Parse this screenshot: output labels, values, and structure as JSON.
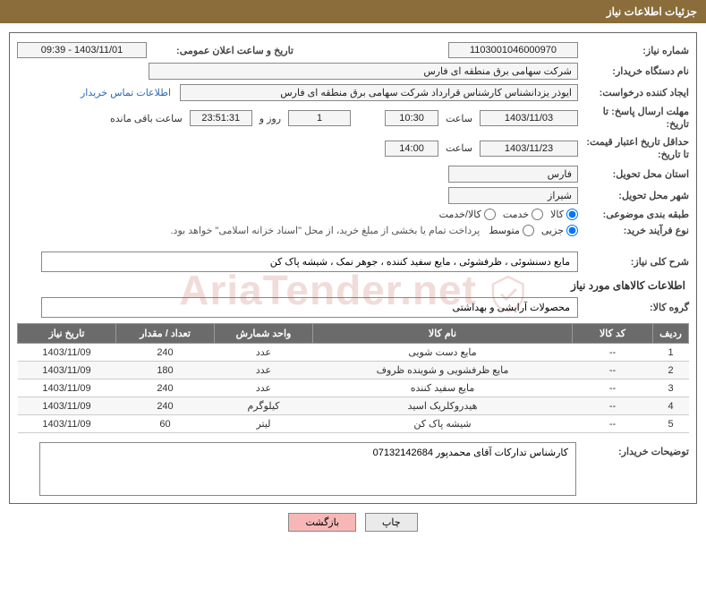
{
  "header": {
    "title": "جزئیات اطلاعات نیاز"
  },
  "fields": {
    "need_no_label": "شماره نیاز:",
    "need_no": "1103001046000970",
    "announce_label": "تاریخ و ساعت اعلان عمومی:",
    "announce_val": "1403/11/01 - 09:39",
    "buyer_org_label": "نام دستگاه خریدار:",
    "buyer_org": "شرکت سهامی برق منطقه ای فارس",
    "requester_label": "ایجاد کننده درخواست:",
    "requester": "ایوذر  یزدانشناس کارشناس قرارداد شرکت سهامی برق منطقه ای فارس",
    "contact_link": "اطلاعات تماس خریدار",
    "deadline_send_label": "مهلت ارسال پاسخ:  تا تاریخ:",
    "deadline_send_date": "1403/11/03",
    "time_label": "ساعت",
    "deadline_send_time": "10:30",
    "days_label_num": "1",
    "days_label": "روز و",
    "countdown": "23:51:31",
    "countdown_suffix": "ساعت باقی مانده",
    "validity_label": "حداقل تاریخ اعتبار قیمت: تا تاریخ:",
    "validity_date": "1403/11/23",
    "validity_time": "14:00",
    "province_label": "استان محل تحویل:",
    "province": "فارس",
    "city_label": "شهر محل تحویل:",
    "city": "شیراز",
    "category_label": "طبقه بندی موضوعی:",
    "cat_goods": "کالا",
    "cat_service": "خدمت",
    "cat_both": "کالا/خدمت",
    "purchase_type_label": "نوع فرآیند خرید:",
    "pt_partial": "جزیی",
    "pt_medium": "متوسط",
    "treasury_note": "پرداخت تمام یا بخشی از مبلغ خرید، از محل \"اسناد خزانه اسلامی\" خواهد بود.",
    "need_desc_label": "شرح کلی نیاز:",
    "need_desc": "مایع دسنشوئی ، ظرفشوئی ، مایع سفید کننده ، جوهر نمک ، شیشه پاک کن",
    "goods_info_header": "اطلاعات کالاهای مورد نیاز",
    "group_label": "گروه کالا:",
    "group_val": "محصولات آرایشی و بهداشتی",
    "buyer_note_label": "توضیحات خریدار:",
    "buyer_note": "کارشناس تدارکات آقای محمدپور 07132142684"
  },
  "table": {
    "headers": {
      "row": "ردیف",
      "code": "کد کالا",
      "name": "نام کالا",
      "unit": "واحد شمارش",
      "qty": "تعداد / مقدار",
      "date": "تاریخ نیاز"
    },
    "col_widths": {
      "row": "40px",
      "code": "90px",
      "name": "auto",
      "unit": "110px",
      "qty": "110px",
      "date": "110px"
    },
    "rows": [
      {
        "row": "1",
        "code": "--",
        "name": "مایع دست شویی",
        "unit": "عدد",
        "qty": "240",
        "date": "1403/11/09"
      },
      {
        "row": "2",
        "code": "--",
        "name": "مایع ظرفشویی و شوینده ظروف",
        "unit": "عدد",
        "qty": "180",
        "date": "1403/11/09"
      },
      {
        "row": "3",
        "code": "--",
        "name": "مایع سفید کننده",
        "unit": "عدد",
        "qty": "240",
        "date": "1403/11/09"
      },
      {
        "row": "4",
        "code": "--",
        "name": "هیدروکلریک اسید",
        "unit": "کیلوگرم",
        "qty": "240",
        "date": "1403/11/09"
      },
      {
        "row": "5",
        "code": "--",
        "name": "شیشه پاک کن",
        "unit": "لیتر",
        "qty": "60",
        "date": "1403/11/09"
      }
    ]
  },
  "buttons": {
    "print": "چاپ",
    "back": "بازگشت"
  },
  "colors": {
    "header_bg": "#8a6d3b",
    "header_fg": "#ffffff",
    "border": "#888888",
    "th_bg": "#6b6b6b",
    "th_fg": "#ffffff",
    "link": "#2a6ab0",
    "btn_pink": "#f7b7b7",
    "watermark": "rgba(180,60,50,0.18)"
  },
  "watermark": {
    "text": "AriaTender.net"
  }
}
